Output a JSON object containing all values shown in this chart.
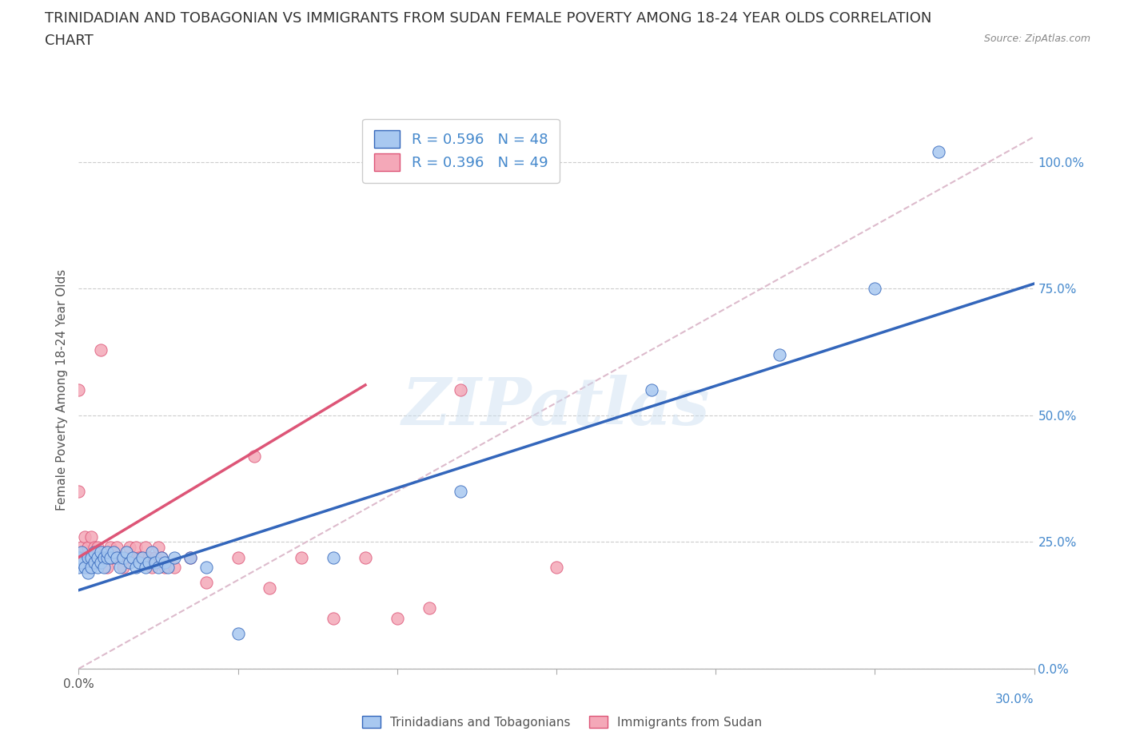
{
  "title_line1": "TRINIDADIAN AND TOBAGONIAN VS IMMIGRANTS FROM SUDAN FEMALE POVERTY AMONG 18-24 YEAR OLDS CORRELATION",
  "title_line2": "CHART",
  "source": "Source: ZipAtlas.com",
  "ylabel": "Female Poverty Among 18-24 Year Olds",
  "xlim": [
    0.0,
    0.3
  ],
  "ylim": [
    0.0,
    1.1
  ],
  "ytick_positions": [
    0.0,
    0.25,
    0.5,
    0.75,
    1.0
  ],
  "yticklabels_right": [
    "0.0%",
    "25.0%",
    "50.0%",
    "75.0%",
    "100.0%"
  ],
  "R_blue": 0.596,
  "N_blue": 48,
  "R_pink": 0.396,
  "N_pink": 49,
  "blue_color": "#a8c8f0",
  "pink_color": "#f4a8b8",
  "line_blue_color": "#3366bb",
  "line_pink_color": "#dd5577",
  "line_diag_color": "#ddbbcc",
  "watermark": "ZIPatlas",
  "title_fontsize": 13,
  "axis_label_fontsize": 11,
  "tick_fontsize": 11,
  "blue_line_x0": 0.0,
  "blue_line_y0": 0.155,
  "blue_line_x1": 0.3,
  "blue_line_y1": 0.76,
  "pink_line_x0": 0.0,
  "pink_line_y0": 0.22,
  "pink_line_x1": 0.09,
  "pink_line_y1": 0.56,
  "diag_line_x0": 0.0,
  "diag_line_y0": 0.0,
  "diag_line_x1": 0.3,
  "diag_line_y1": 1.05,
  "blue_scatter_x": [
    0.0,
    0.0,
    0.001,
    0.001,
    0.002,
    0.003,
    0.003,
    0.004,
    0.004,
    0.005,
    0.005,
    0.006,
    0.006,
    0.007,
    0.007,
    0.008,
    0.008,
    0.009,
    0.009,
    0.01,
    0.011,
    0.012,
    0.013,
    0.014,
    0.015,
    0.016,
    0.017,
    0.018,
    0.019,
    0.02,
    0.021,
    0.022,
    0.023,
    0.024,
    0.025,
    0.026,
    0.027,
    0.028,
    0.03,
    0.035,
    0.04,
    0.05,
    0.08,
    0.12,
    0.18,
    0.22,
    0.25,
    0.27
  ],
  "blue_scatter_y": [
    0.2,
    0.22,
    0.23,
    0.21,
    0.2,
    0.22,
    0.19,
    0.22,
    0.2,
    0.21,
    0.23,
    0.22,
    0.2,
    0.23,
    0.21,
    0.22,
    0.2,
    0.22,
    0.23,
    0.22,
    0.23,
    0.22,
    0.2,
    0.22,
    0.23,
    0.21,
    0.22,
    0.2,
    0.21,
    0.22,
    0.2,
    0.21,
    0.23,
    0.21,
    0.2,
    0.22,
    0.21,
    0.2,
    0.22,
    0.22,
    0.2,
    0.07,
    0.22,
    0.35,
    0.55,
    0.62,
    0.75,
    1.02
  ],
  "pink_scatter_x": [
    0.0,
    0.0,
    0.001,
    0.001,
    0.002,
    0.002,
    0.003,
    0.003,
    0.004,
    0.004,
    0.005,
    0.005,
    0.006,
    0.006,
    0.007,
    0.007,
    0.008,
    0.009,
    0.01,
    0.011,
    0.012,
    0.013,
    0.014,
    0.015,
    0.016,
    0.017,
    0.018,
    0.019,
    0.02,
    0.021,
    0.022,
    0.023,
    0.024,
    0.025,
    0.026,
    0.027,
    0.03,
    0.035,
    0.04,
    0.05,
    0.055,
    0.06,
    0.07,
    0.08,
    0.09,
    0.1,
    0.11,
    0.12,
    0.15
  ],
  "pink_scatter_y": [
    0.55,
    0.35,
    0.24,
    0.22,
    0.26,
    0.22,
    0.24,
    0.2,
    0.26,
    0.22,
    0.24,
    0.22,
    0.24,
    0.22,
    0.63,
    0.22,
    0.22,
    0.2,
    0.24,
    0.22,
    0.24,
    0.22,
    0.2,
    0.22,
    0.24,
    0.22,
    0.24,
    0.22,
    0.22,
    0.24,
    0.22,
    0.2,
    0.22,
    0.24,
    0.22,
    0.2,
    0.2,
    0.22,
    0.17,
    0.22,
    0.42,
    0.16,
    0.22,
    0.1,
    0.22,
    0.1,
    0.12,
    0.55,
    0.2
  ]
}
